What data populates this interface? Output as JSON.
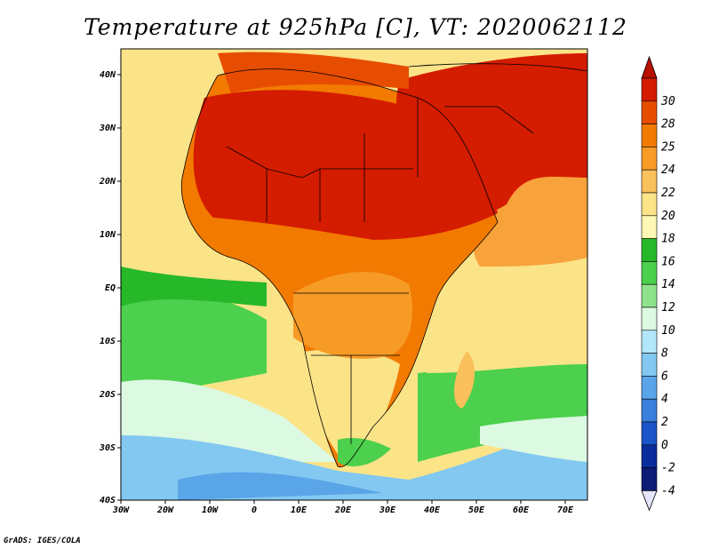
{
  "title": "Temperature at 925hPa [C], VT: 2020062112",
  "credit": "GrADS: IGES/COLA",
  "map": {
    "lon_labels": [
      "30W",
      "20W",
      "10W",
      "0",
      "10E",
      "20E",
      "30E",
      "40E",
      "50E",
      "60E",
      "70E"
    ],
    "lat_labels": [
      "40N",
      "30N",
      "20N",
      "10N",
      "EQ",
      "10S",
      "20S",
      "30S",
      "40S"
    ],
    "lon_range": [
      -30,
      75
    ],
    "lat_range": [
      -40,
      45
    ]
  },
  "colorbar": {
    "labels": [
      "30",
      "28",
      "25",
      "24",
      "22",
      "20",
      "18",
      "16",
      "14",
      "12",
      "10",
      "8",
      "6",
      "4",
      "2",
      "0",
      "-2",
      "-4"
    ],
    "colors": [
      "#d41c00",
      "#e74d00",
      "#f27a00",
      "#f79b27",
      "#f9c05c",
      "#fbe388",
      "#fff7b5",
      "#27b82a",
      "#4cd04d",
      "#8fe28c",
      "#dcf9e2",
      "#b2e6fa",
      "#82c8f0",
      "#5aa4e8",
      "#3a7fdc",
      "#1b54c8",
      "#0a2d9c",
      "#0b1a74"
    ],
    "top_arrow_color": "#b81000",
    "bottom_arrow_color": "#e4e4fa"
  },
  "palette": {
    "ocean_cool": "#56a0e4",
    "ocean_light": "#b6e2f6",
    "ocean_green": "#4cd04d",
    "ocean_yellow": "#fbe388",
    "ocean_orange": "#f7a23a",
    "land_hot": "#d41c00"
  }
}
